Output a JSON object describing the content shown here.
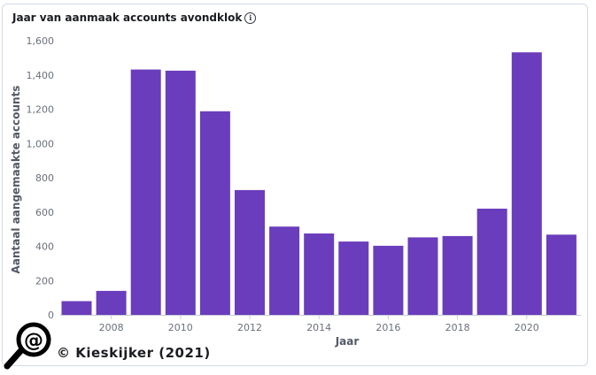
{
  "panel": {
    "title": "Jaar van aanmaak accounts avondklok",
    "info_icon": "info-icon"
  },
  "credit": {
    "text": "© Kieskijker (2021)",
    "logo_icon": "magnifier-at-icon"
  },
  "colors": {
    "bar": "#6a3dbc",
    "axis_text": "#69707d",
    "axis_title": "#535966"
  },
  "chart_data": {
    "type": "bar",
    "title": "Jaar van aanmaak accounts avondklok",
    "xlabel": "Jaar",
    "ylabel": "Aantaal aangemaakte accounts",
    "categories": [
      2007,
      2008,
      2009,
      2010,
      2011,
      2012,
      2013,
      2014,
      2015,
      2016,
      2017,
      2018,
      2019,
      2020,
      2021
    ],
    "values": [
      80,
      140,
      1432,
      1425,
      1188,
      728,
      515,
      475,
      428,
      403,
      452,
      460,
      620,
      1532,
      468
    ],
    "x_tick_labels": [
      "2008",
      "2010",
      "2012",
      "2014",
      "2016",
      "2018",
      "2020"
    ],
    "x_tick_values": [
      2008,
      2010,
      2012,
      2014,
      2016,
      2018,
      2020
    ],
    "y_tick_labels": [
      "0",
      "200",
      "400",
      "600",
      "800",
      "1,000",
      "1,200",
      "1,400",
      "1,600"
    ],
    "y_tick_values": [
      0,
      200,
      400,
      600,
      800,
      1000,
      1200,
      1400,
      1600
    ],
    "ylim": [
      0,
      1600
    ],
    "grid": false,
    "legend": "none"
  }
}
